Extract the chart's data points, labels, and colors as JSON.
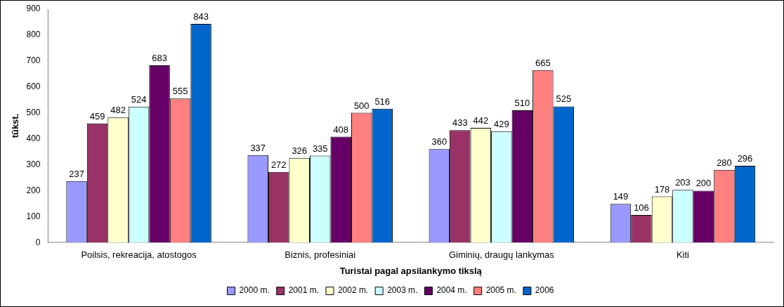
{
  "chart_data": {
    "type": "bar",
    "xlabel": "Turistai pagal apsilankymo tikslą",
    "ylabel": "tūkst.",
    "categories": [
      "Poilsis, rekreacija, atostogos",
      "Biznis, profesiniai",
      "Giminių, draugų lankymas",
      "Kiti"
    ],
    "series": [
      {
        "name": "2000 m.",
        "color": "#9999ff",
        "values": [
          237,
          337,
          360,
          149
        ]
      },
      {
        "name": "2001 m.",
        "color": "#993366",
        "values": [
          459,
          272,
          433,
          106
        ]
      },
      {
        "name": "2002 m.",
        "color": "#ffffcc",
        "values": [
          482,
          326,
          442,
          178
        ]
      },
      {
        "name": "2003 m.",
        "color": "#ccffff",
        "values": [
          524,
          335,
          429,
          203
        ]
      },
      {
        "name": "2004 m.",
        "color": "#660066",
        "values": [
          683,
          408,
          510,
          200
        ]
      },
      {
        "name": "2005 m.",
        "color": "#ff8080",
        "values": [
          555,
          500,
          665,
          280
        ]
      },
      {
        "name": "2006",
        "color": "#0066cc",
        "values": [
          843,
          516,
          525,
          296
        ]
      }
    ],
    "ylim": [
      0,
      900
    ],
    "yticks": [
      0,
      100,
      200,
      300,
      400,
      500,
      600,
      700,
      800,
      900
    ],
    "grid": false,
    "legend": "bottom",
    "data_labels": true
  }
}
